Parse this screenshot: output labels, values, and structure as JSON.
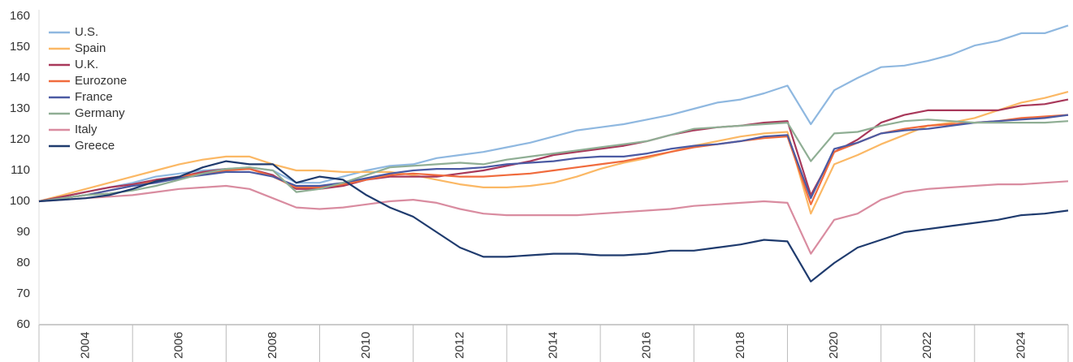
{
  "chart_data": {
    "type": "line",
    "x": [
      2003,
      2003.5,
      2004,
      2004.5,
      2005,
      2005.5,
      2006,
      2006.5,
      2007,
      2007.5,
      2008,
      2008.5,
      2009,
      2009.5,
      2010,
      2010.5,
      2011,
      2011.5,
      2012,
      2012.5,
      2013,
      2013.5,
      2014,
      2014.5,
      2015,
      2015.5,
      2016,
      2016.5,
      2017,
      2017.5,
      2018,
      2018.5,
      2019,
      2019.5,
      2020,
      2020.5,
      2021,
      2021.5,
      2022,
      2022.5,
      2023,
      2023.5,
      2024,
      2024.5,
      2025
    ],
    "xlim": [
      2003,
      2025
    ],
    "xticks": [
      2004,
      2006,
      2008,
      2010,
      2012,
      2014,
      2016,
      2018,
      2020,
      2022,
      2024
    ],
    "ylim": [
      60,
      160
    ],
    "yticks": [
      60,
      70,
      80,
      90,
      100,
      110,
      120,
      130,
      140,
      150,
      160
    ],
    "legend": "upper left",
    "series": [
      {
        "name": "U.S.",
        "color": "#8fb8e0",
        "values": [
          100,
          101.5,
          103,
          104.5,
          106,
          108,
          109,
          110,
          110.5,
          111,
          110,
          106,
          106,
          108,
          110,
          111.5,
          112,
          114,
          115,
          116,
          117.5,
          119,
          121,
          123,
          124,
          125,
          126.5,
          128,
          130,
          132,
          133,
          135,
          137.5,
          125,
          136,
          140,
          143.5,
          144,
          145.5,
          147.5,
          150.5,
          152,
          154.5,
          154.5,
          157
        ]
      },
      {
        "name": "Spain",
        "color": "#fbb865",
        "values": [
          100,
          102,
          104,
          106,
          108,
          110,
          112,
          113.5,
          114.5,
          114.5,
          112,
          110,
          110,
          109.5,
          109.5,
          109.5,
          108.5,
          107,
          105.5,
          104.5,
          104.5,
          105,
          106,
          108,
          110.5,
          112.5,
          114,
          116,
          118,
          119.5,
          121,
          122,
          122.5,
          96,
          112,
          115,
          118.5,
          121.5,
          124.5,
          125.5,
          127,
          129.5,
          132,
          133.5,
          135.5
        ]
      },
      {
        "name": "U.K.",
        "color": "#a8385a",
        "values": [
          100,
          101.5,
          103,
          104.5,
          105.5,
          107,
          108,
          109.5,
          110.5,
          110.5,
          108.5,
          104,
          104,
          105,
          107,
          108,
          108,
          108,
          109,
          110,
          111.5,
          113,
          115,
          116,
          117,
          118,
          119.5,
          121.5,
          123,
          124,
          124.5,
          125.5,
          126,
          102,
          116,
          120,
          125.5,
          128,
          129.5,
          129.5,
          129.5,
          129.5,
          131,
          131.5,
          133
        ]
      },
      {
        "name": "Eurozone",
        "color": "#f06b3d",
        "values": [
          100,
          101,
          102,
          103.5,
          105,
          106.5,
          108,
          109,
          110,
          110.5,
          108,
          104.5,
          104.5,
          105.5,
          107,
          108.5,
          109,
          108.5,
          108,
          108,
          108.5,
          109,
          110,
          111,
          112,
          113,
          114.5,
          116,
          117.5,
          118.5,
          119.5,
          120.5,
          121,
          99,
          116,
          119,
          122,
          123.5,
          124.5,
          125,
          125.5,
          126,
          127,
          127.5,
          128
        ]
      },
      {
        "name": "France",
        "color": "#4b5aa3",
        "values": [
          100,
          101,
          102,
          103.5,
          105,
          106,
          107.5,
          108.5,
          109.5,
          109.5,
          108,
          105,
          105,
          106,
          107.5,
          109,
          110,
          110.5,
          110.5,
          111,
          112,
          112.5,
          113,
          114,
          114.5,
          114.5,
          115.5,
          117,
          118,
          118.5,
          119.5,
          121,
          121.5,
          101,
          117,
          119,
          122,
          123,
          123.5,
          124.5,
          125.5,
          126,
          126.5,
          127,
          128
        ]
      },
      {
        "name": "Germany",
        "color": "#8fae94",
        "values": [
          100,
          101,
          102,
          102.5,
          103.5,
          105,
          107,
          109,
          110.5,
          111,
          110,
          103,
          104,
          106,
          108.5,
          111,
          111.5,
          112,
          112.5,
          112,
          113.5,
          114.5,
          115.5,
          116.5,
          117.5,
          118.5,
          119.5,
          121.5,
          123.5,
          124,
          124.5,
          125,
          125.5,
          113,
          122,
          122.5,
          124.5,
          126,
          126.5,
          126,
          125.5,
          125.5,
          125.5,
          125.5,
          126
        ]
      },
      {
        "name": "Italy",
        "color": "#d98ca0",
        "values": [
          100,
          100.5,
          101,
          101.5,
          102,
          103,
          104,
          104.5,
          105,
          104,
          101,
          98,
          97.5,
          98,
          99,
          100,
          100.5,
          99.5,
          97.5,
          96,
          95.5,
          95.5,
          95.5,
          95.5,
          96,
          96.5,
          97,
          97.5,
          98.5,
          99,
          99.5,
          100,
          99.5,
          83,
          94,
          96,
          100.5,
          103,
          104,
          104.5,
          105,
          105.5,
          105.5,
          106,
          106.5
        ]
      },
      {
        "name": "Greece",
        "color": "#1f3b6e",
        "values": [
          100,
          100.5,
          101,
          102,
          104,
          106.5,
          108,
          111,
          113,
          112,
          112,
          106,
          108,
          107,
          102,
          98,
          95,
          90,
          85,
          82,
          82,
          82.5,
          83,
          83,
          82.5,
          82.5,
          83,
          84,
          84,
          85,
          86,
          87.5,
          87,
          74,
          80,
          85,
          87.5,
          90,
          91,
          92,
          93,
          94,
          95.5,
          96,
          97
        ]
      }
    ]
  }
}
